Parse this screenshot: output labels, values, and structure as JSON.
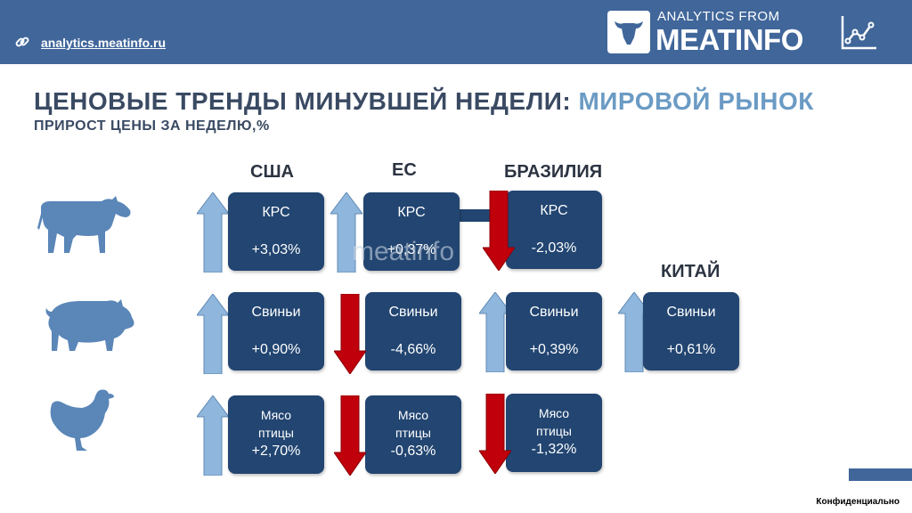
{
  "header": {
    "link": "analytics.meatinfo.ru",
    "brand_small": "ANALYTICS FROM",
    "brand_big": "MEATINFO"
  },
  "title": {
    "main": "ЦЕНОВЫЕ ТРЕНДЫ МИНУВШЕЙ НЕДЕЛИ:",
    "accent": "МИРОВОЙ РЫНОК",
    "subtitle": "ПРИРОСТ ЦЕНЫ ЗА НЕДЕЛЮ,%"
  },
  "columns": {
    "usa": "США",
    "eu": "ЕС",
    "brazil": "БРАЗИЛИЯ",
    "china": "КИТАЙ"
  },
  "rows": {
    "cattle": {
      "icon": "cow-icon",
      "usa": {
        "label": "КРС",
        "value": "+3,03%",
        "direction": "up"
      },
      "eu": {
        "label": "КРС",
        "value": "+0,37%",
        "direction": "up"
      },
      "brazil": {
        "label": "КРС",
        "value": "-2,03%",
        "direction": "down"
      }
    },
    "pigs": {
      "icon": "pig-icon",
      "usa": {
        "label": "Свиньи",
        "value": "+0,90%",
        "direction": "up"
      },
      "eu": {
        "label": "Свиньи",
        "value": "-4,66%",
        "direction": "down"
      },
      "brazil": {
        "label": "Свиньи",
        "value": "+0,39%",
        "direction": "up"
      },
      "china": {
        "label": "Свиньи",
        "value": "+0,61%",
        "direction": "up"
      }
    },
    "poultry": {
      "icon": "chicken-icon",
      "usa": {
        "label_1": "Мясо",
        "label_2": "птицы",
        "value": "+2,70%",
        "direction": "up"
      },
      "eu": {
        "label_1": "Мясо",
        "label_2": "птицы",
        "value": "-0,63%",
        "direction": "down"
      },
      "brazil": {
        "label_1": "Мясо",
        "label_2": "птицы",
        "value": "-1,32%",
        "direction": "down"
      }
    }
  },
  "watermark": "meatinfo",
  "footer": {
    "confidential": "Конфиденциально"
  },
  "colors": {
    "header_bg": "#40669a",
    "box_bg": "#224571",
    "arrow_up": "#8fb6dc",
    "arrow_down": "#c0000b",
    "title": "#3a4a63",
    "accent": "#6b9bc4"
  }
}
